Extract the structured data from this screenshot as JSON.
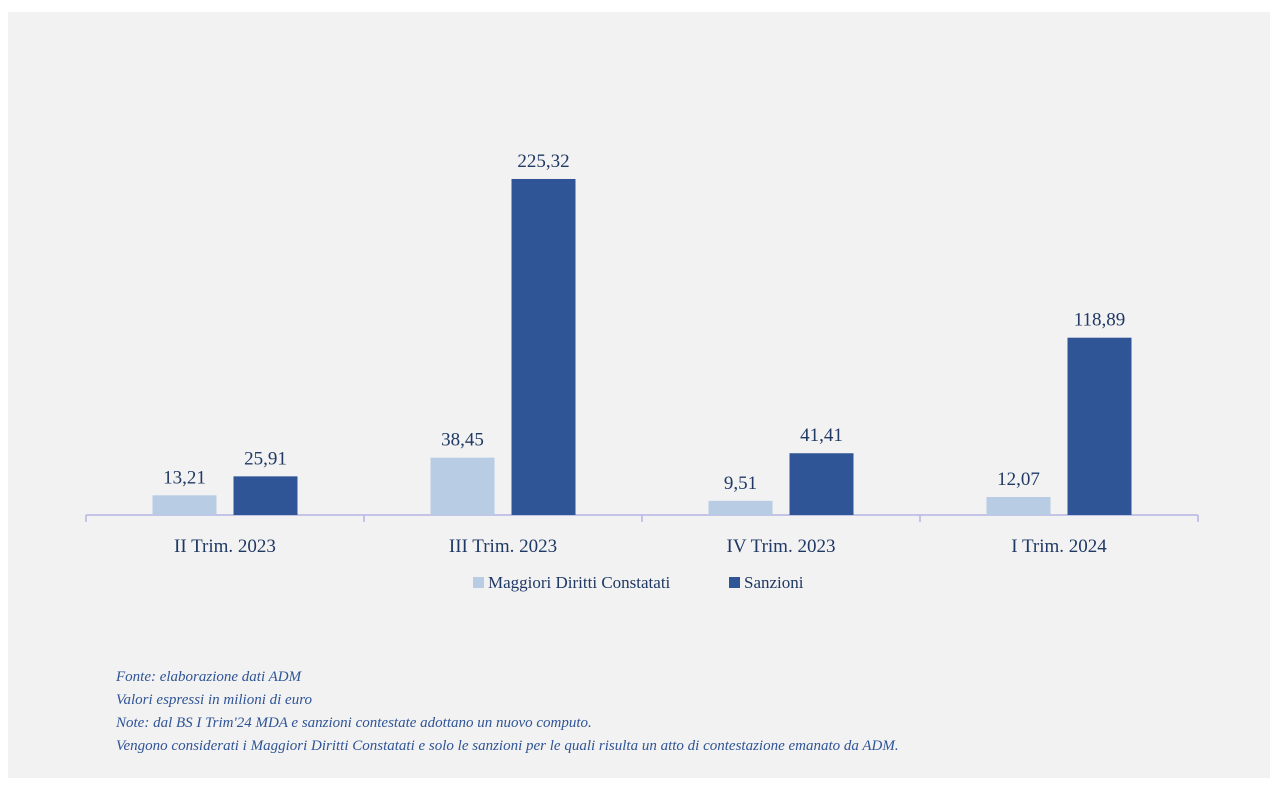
{
  "colors": {
    "background": "#f2f2f2",
    "maggiori": "#b8cce4",
    "sanzioni": "#2f5597",
    "text": "#1f3864",
    "axis": "#b4b4e6",
    "notes": "#2f5496"
  },
  "chart_data": {
    "type": "bar",
    "categories": [
      "II Trim. 2023",
      "III Trim. 2023",
      "IV Trim. 2023",
      "I Trim. 2024"
    ],
    "series": [
      {
        "name": "Maggiori Diritti Constatati",
        "values": [
          13.21,
          38.45,
          9.51,
          12.07
        ],
        "labels": [
          "13,21",
          "38,45",
          "9,51",
          "12,07"
        ]
      },
      {
        "name": "Sanzioni",
        "values": [
          25.91,
          225.32,
          41.41,
          118.89
        ],
        "labels": [
          "25,91",
          "225,32",
          "41,41",
          "118,89"
        ]
      }
    ],
    "ylim": [
      0,
      230
    ],
    "grid": false,
    "legend_position": "bottom"
  },
  "notes": [
    "Fonte: elaborazione dati ADM",
    "Valori espressi in milioni di euro",
    "Note: dal BS I Trim'24 MDA e sanzioni contestate adottano un nuovo computo.",
    "Vengono considerati i Maggiori Diritti Constatati e solo le sanzioni per le quali risulta un atto di contestazione emanato da ADM."
  ]
}
